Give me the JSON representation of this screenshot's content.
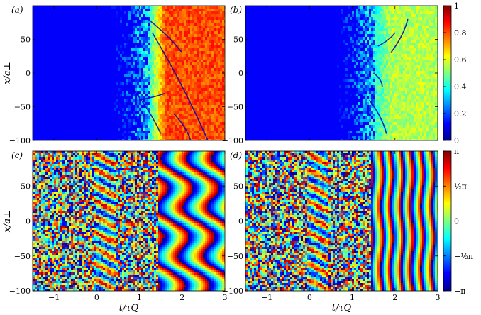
{
  "chart_data": [
    {
      "type": "heatmap",
      "panel_label": "(a)",
      "ylabel": "x/a⊥",
      "xlabel": "",
      "x_ticks": [
        -1,
        0,
        1,
        2,
        3
      ],
      "y_ticks": [
        -100,
        -50,
        0,
        50
      ],
      "xlim": [
        -1.5,
        3
      ],
      "ylim": [
        -100,
        100
      ],
      "quantity": "density",
      "transition_t": 1.2,
      "dominant_value_after": 0.8
    },
    {
      "type": "heatmap",
      "panel_label": "(b)",
      "ylabel": "",
      "xlabel": "",
      "x_ticks": [
        -1,
        0,
        1,
        2,
        3
      ],
      "y_ticks": [
        -100,
        -50,
        0,
        50
      ],
      "xlim": [
        -1.5,
        3
      ],
      "ylim": [
        -100,
        100
      ],
      "quantity": "density",
      "transition_t": 1.5,
      "dominant_value_after": 0.55,
      "colorbar": {
        "min": 0,
        "max": 1,
        "ticks": [
          "0",
          "0.2",
          "0.4",
          "0.6",
          "0.8",
          "1"
        ]
      }
    },
    {
      "type": "heatmap",
      "panel_label": "(c)",
      "ylabel": "x/a⊥",
      "xlabel": "t/τQ",
      "x_ticks": [
        -1,
        0,
        1,
        2,
        3
      ],
      "y_ticks": [
        -100,
        -50,
        0,
        50
      ],
      "xlim": [
        -1.5,
        3
      ],
      "ylim": [
        -100,
        100
      ],
      "quantity": "phase"
    },
    {
      "type": "heatmap",
      "panel_label": "(d)",
      "ylabel": "",
      "xlabel": "t/τQ",
      "x_ticks": [
        -1,
        0,
        1,
        2,
        3
      ],
      "y_ticks": [
        -100,
        -50,
        0,
        50
      ],
      "xlim": [
        -1.5,
        3
      ],
      "ylim": [
        -100,
        100
      ],
      "quantity": "phase",
      "colorbar": {
        "min": -3.14159,
        "max": 3.14159,
        "ticks": [
          "π",
          "½π",
          "0",
          "−½π",
          "−π"
        ]
      }
    }
  ],
  "colors": {
    "jet": [
      "#00008f",
      "#0000ff",
      "#00ffff",
      "#ffff00",
      "#ff0000",
      "#800000"
    ]
  }
}
